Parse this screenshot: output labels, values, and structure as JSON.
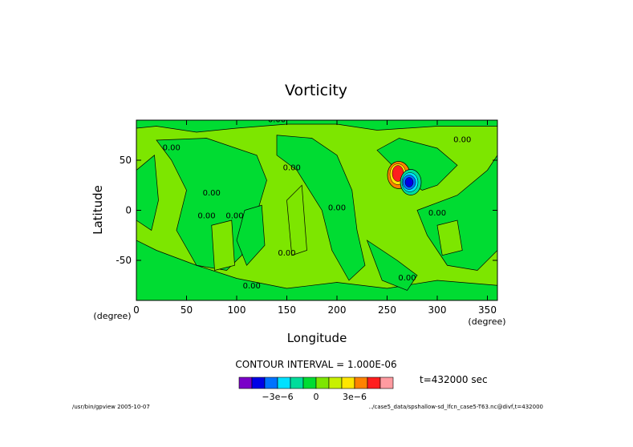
{
  "chart_data": {
    "type": "heatmap",
    "title": "Vorticity",
    "xlabel": "Longitude",
    "ylabel": "Latitude",
    "x_unit": "(degree)",
    "y_unit": "(degree)",
    "xlim": [
      0,
      360
    ],
    "ylim": [
      -90,
      90
    ],
    "x_ticks": [
      0,
      50,
      100,
      150,
      200,
      250,
      300,
      350
    ],
    "y_ticks": [
      -50,
      0,
      50
    ],
    "contour_interval_label": "CONTOUR INTERVAL = 1.000E-06",
    "time_label": "t=432000 sec",
    "contour_labels": [
      "0.00",
      "0.00",
      "0.00",
      "0.00",
      "0.00",
      "0.00",
      "0.00",
      "0.00",
      "0.00",
      "0.00",
      "0.00",
      "0.00"
    ],
    "colorbar": {
      "colors": [
        "#7a00c8",
        "#0000e6",
        "#0073ff",
        "#00e1ff",
        "#00dc9b",
        "#00dc32",
        "#7de600",
        "#c8f000",
        "#ffe600",
        "#ff8200",
        "#ff1e1e",
        "#ff9ba0"
      ],
      "tick_labels": [
        {
          "label": "−3e−6",
          "value": -3e-06
        },
        {
          "label": "0",
          "value": 0
        },
        {
          "label": "3e−6",
          "value": 3e-06
        }
      ],
      "range": [
        -6e-06,
        6e-06
      ]
    },
    "background_value_color": "#7de600",
    "band_value_color": "#00dc32",
    "vortex": {
      "lon": 268,
      "lat": 32,
      "positive_color": "#ff1e1e",
      "negative_color": "#0000e6"
    }
  },
  "footer": {
    "left": "/usr/bin/gpview  2005-10-07",
    "right": "../case5_data/spshallow-sd_lfcn_case5-T63.nc@divf,t=432000"
  }
}
